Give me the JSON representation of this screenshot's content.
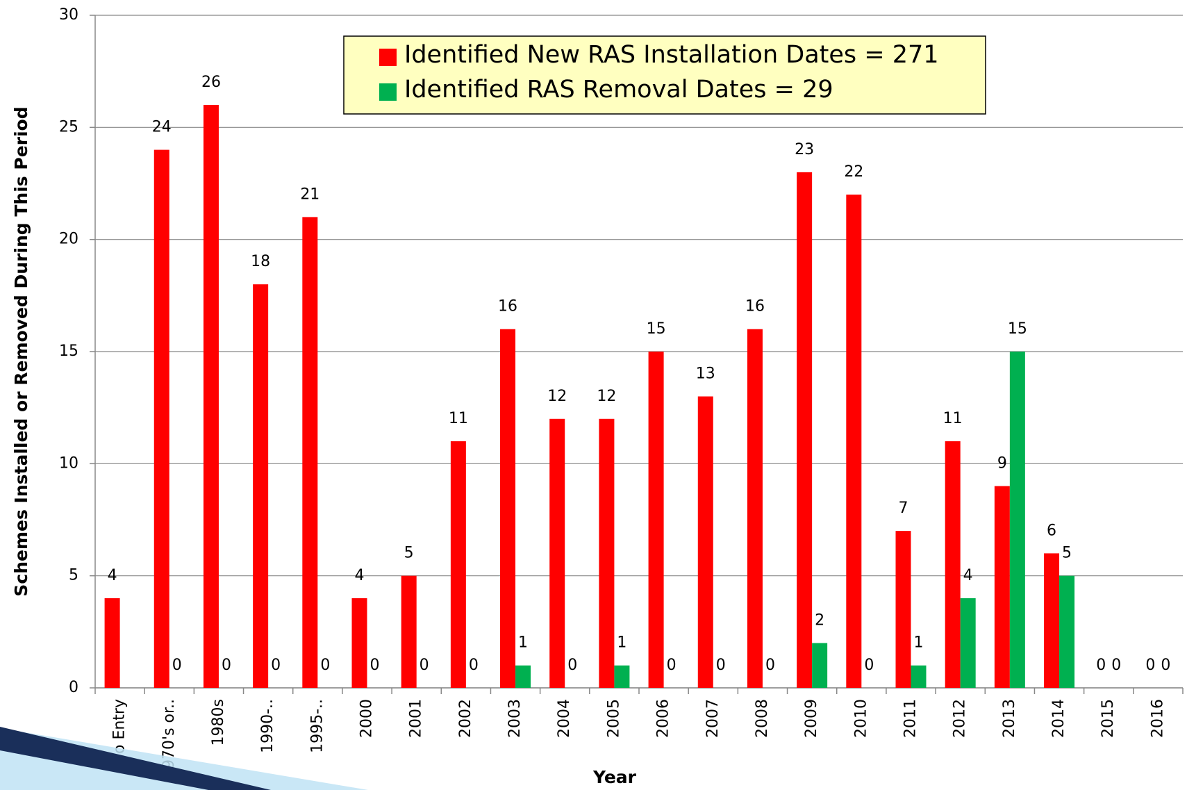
{
  "chart_data": {
    "type": "bar",
    "y_label": "Schemes Installed or Removed During This Period",
    "x_label": "Year",
    "categories": [
      "No Entry",
      "1970's or..",
      "1980s",
      "1990-..",
      "1995-..",
      "2000",
      "2001",
      "2002",
      "2003",
      "2004",
      "2005",
      "2006",
      "2007",
      "2008",
      "2009",
      "2010",
      "2011",
      "2012",
      "2013",
      "2014",
      "2015",
      "2016"
    ],
    "series": [
      {
        "name": "Identified New RAS Installation Dates = 271",
        "color": "#ff0000",
        "values": [
          4,
          24,
          26,
          18,
          21,
          4,
          5,
          11,
          16,
          12,
          12,
          15,
          13,
          16,
          23,
          22,
          7,
          11,
          9,
          6,
          0,
          0
        ]
      },
      {
        "name": "Identified RAS Removal Dates = 29",
        "color": "#00b050",
        "values": [
          null,
          0,
          0,
          0,
          0,
          0,
          0,
          0,
          1,
          0,
          1,
          0,
          0,
          0,
          2,
          0,
          1,
          4,
          15,
          5,
          0,
          0
        ]
      }
    ],
    "ylim": [
      0,
      30
    ],
    "yticks": [
      0,
      5,
      10,
      15,
      20,
      25,
      30
    ],
    "grid": true
  }
}
